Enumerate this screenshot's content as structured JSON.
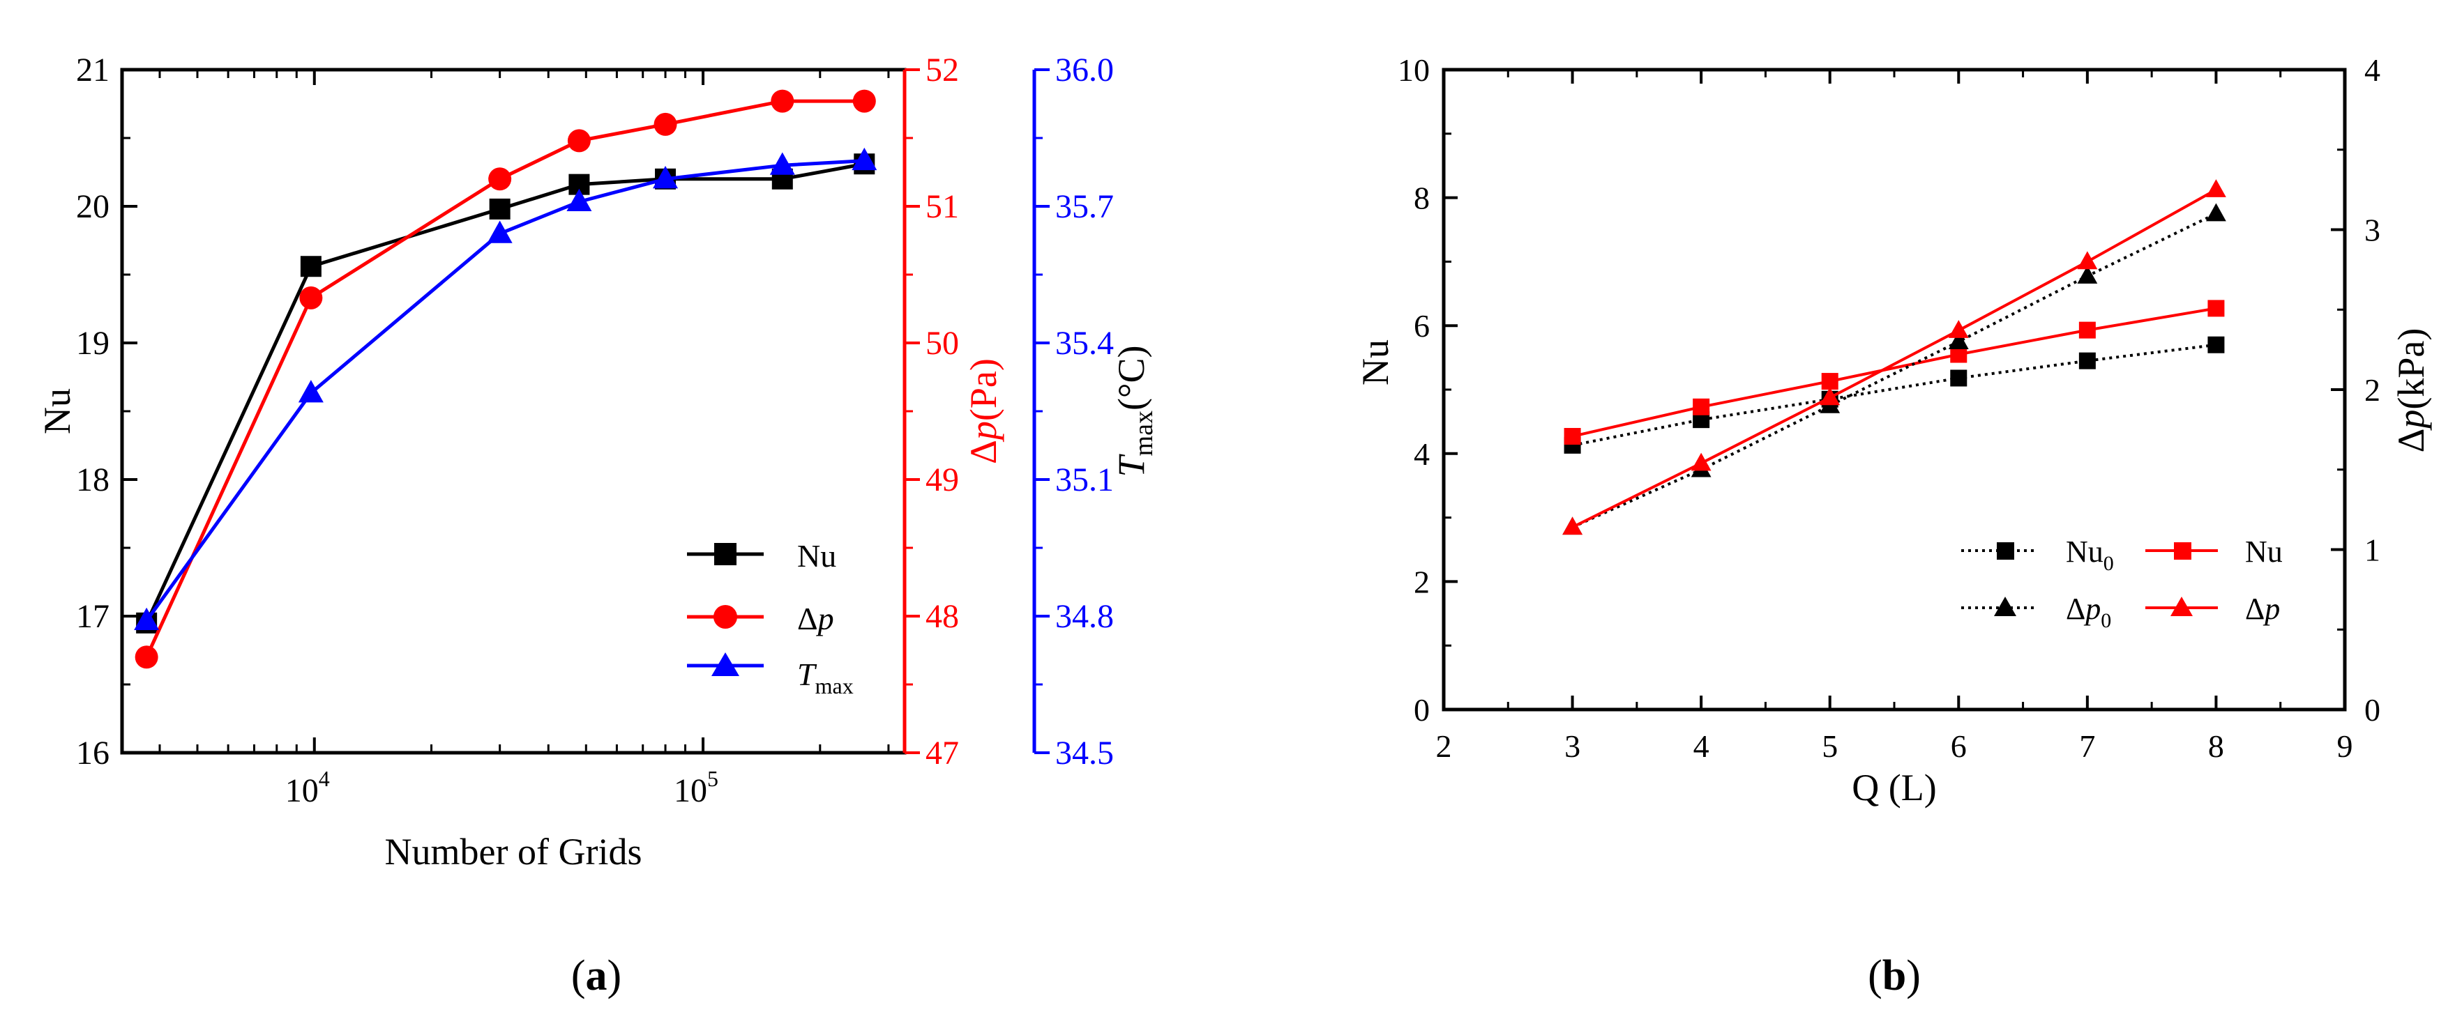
{
  "chart_data": [
    {
      "type": "line",
      "panel_label": "a",
      "title": "",
      "xlabel": "Number of Grids",
      "xscale": "log",
      "xlim": [
        3200,
        330000
      ],
      "x_ticks": [
        {
          "value": 10000,
          "base": "10",
          "exp": "4"
        },
        {
          "value": 100000,
          "base": "10",
          "exp": "5"
        }
      ],
      "axes": [
        {
          "id": "nu",
          "side": "left",
          "label": "Nu",
          "color": "#000000",
          "ylim": [
            16,
            21
          ],
          "ticks": [
            "16",
            "17",
            "18",
            "19",
            "20",
            "21"
          ],
          "tick_values": [
            16,
            17,
            18,
            19,
            20,
            21
          ]
        },
        {
          "id": "dp",
          "side": "right",
          "label": "Δp(Pa)",
          "color": "#ff0000",
          "ylim": [
            47,
            52
          ],
          "ticks": [
            "47",
            "48",
            "49",
            "50",
            "51",
            "52"
          ],
          "tick_values": [
            47,
            48,
            49,
            50,
            51,
            52
          ]
        },
        {
          "id": "tmax",
          "side": "right-outer",
          "label": "Tmax(°C)",
          "color": "#0000ff",
          "ylim": [
            34.5,
            36.0
          ],
          "ticks": [
            "34.5",
            "34.8",
            "35.1",
            "35.4",
            "35.7",
            "36.0"
          ],
          "tick_values": [
            34.5,
            34.8,
            35.1,
            35.4,
            35.7,
            36.0
          ]
        }
      ],
      "x": [
        3700,
        9800,
        30000,
        48000,
        80000,
        160000,
        260000
      ],
      "series": [
        {
          "name": "Nu",
          "axis": "nu",
          "color": "#000000",
          "marker": "square",
          "values": [
            16.95,
            19.56,
            19.98,
            20.16,
            20.2,
            20.2,
            20.31
          ]
        },
        {
          "name": "Δp",
          "axis": "dp",
          "color": "#ff0000",
          "marker": "circle",
          "values": [
            47.7,
            50.33,
            51.2,
            51.48,
            51.6,
            51.77,
            51.77
          ]
        },
        {
          "name": "Tmax",
          "axis": "tmax",
          "color": "#0000ff",
          "marker": "triangle",
          "values": [
            34.79,
            35.29,
            35.64,
            35.71,
            35.76,
            35.79,
            35.8
          ]
        }
      ],
      "legend": {
        "position": "lower-right",
        "entries": [
          "Nu",
          "Δp",
          "Tmax"
        ]
      }
    },
    {
      "type": "line",
      "panel_label": "b",
      "title": "",
      "xlabel": "Q (L)",
      "xlim": [
        2,
        9
      ],
      "x_ticks": [
        "2",
        "3",
        "4",
        "5",
        "6",
        "7",
        "8",
        "9"
      ],
      "x_tick_values": [
        2,
        3,
        4,
        5,
        6,
        7,
        8,
        9
      ],
      "axes": [
        {
          "id": "nu",
          "side": "left",
          "label": "Nu",
          "color": "#000000",
          "ylim": [
            0,
            10
          ],
          "ticks": [
            "0",
            "2",
            "4",
            "6",
            "8",
            "10"
          ],
          "tick_values": [
            0,
            2,
            4,
            6,
            8,
            10
          ]
        },
        {
          "id": "dp",
          "side": "right",
          "label": "Δp(kPa)",
          "color": "#000000",
          "ylim": [
            0,
            4
          ],
          "ticks": [
            "0",
            "1",
            "2",
            "3",
            "4"
          ],
          "tick_values": [
            0,
            1,
            2,
            3,
            4
          ]
        }
      ],
      "x": [
        3,
        4,
        5,
        6,
        7,
        8
      ],
      "series": [
        {
          "name": "Nu0",
          "axis": "nu",
          "color": "#000000",
          "marker": "square",
          "dash": "dotted",
          "values": [
            4.13,
            4.53,
            4.85,
            5.18,
            5.45,
            5.7
          ]
        },
        {
          "name": "Nu",
          "axis": "nu",
          "color": "#ff0000",
          "marker": "square",
          "dash": "solid",
          "values": [
            4.27,
            4.73,
            5.13,
            5.55,
            5.93,
            6.27
          ]
        },
        {
          "name": "Δp0",
          "axis": "dp",
          "color": "#000000",
          "marker": "triangle",
          "dash": "dotted",
          "values": [
            1.14,
            1.5,
            1.9,
            2.3,
            2.71,
            3.1
          ]
        },
        {
          "name": "Δp",
          "axis": "dp",
          "color": "#ff0000",
          "marker": "triangle",
          "dash": "solid",
          "values": [
            1.14,
            1.54,
            1.95,
            2.37,
            2.8,
            3.25
          ]
        }
      ],
      "legend": {
        "position": "lower-right",
        "entries": [
          "Nu0",
          "Nu",
          "Δp0",
          "Δp"
        ]
      }
    }
  ]
}
